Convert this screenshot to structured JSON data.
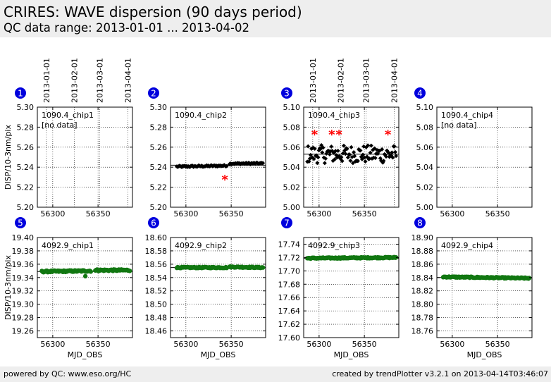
{
  "header": {
    "title": "CRIRES: WAVE dispersion (90 days period)",
    "subtitle": "QC data range: 2013-01-01 ... 2013-04-02"
  },
  "footer": {
    "left": "powered by QC: www.eso.org/HC",
    "right": "created by trendPlotter v3.2.1 on 2013-04-14T03:46:07"
  },
  "colors": {
    "row1_points": "#000000",
    "row2_points": "#117711",
    "outlier": "#ff0000",
    "badge": "#0000dd",
    "header_bg": "#eeeeee"
  },
  "chart_data": [
    {
      "type": "scatter",
      "number": "1",
      "label": "1090.4_chip1",
      "note": "[no data]",
      "ylabel": "DISP/10-3nm/pix",
      "xlabel": "",
      "xlim": [
        56283,
        56388
      ],
      "xticks": [
        56300,
        56350
      ],
      "ylim": [
        5.2,
        5.3
      ],
      "yticks": [
        "5.20",
        "5.22",
        "5.24",
        "5.26",
        "5.28",
        "5.30"
      ],
      "reference": null,
      "noise": 0,
      "series": [],
      "outliers": [],
      "date_ticks": [
        {
          "label": "2013-01-01",
          "x": 56293
        },
        {
          "label": "2013-02-01",
          "x": 56324
        },
        {
          "label": "2013-03-01",
          "x": 56352
        },
        {
          "label": "2013-04-01",
          "x": 56383
        }
      ]
    },
    {
      "type": "scatter",
      "number": "2",
      "label": "1090.4_chip2",
      "note": "",
      "ylabel": "",
      "xlabel": "",
      "xlim": [
        56283,
        56388
      ],
      "xticks": [
        56300,
        56350
      ],
      "ylim": [
        5.2,
        5.3
      ],
      "yticks": [
        "5.20",
        "5.22",
        "5.24",
        "5.26",
        "5.28",
        "5.30"
      ],
      "reference": 5.242,
      "noise": 0.0008,
      "series": [
        {
          "x": [
            56290,
            56345
          ],
          "y": [
            5.2405,
            5.2415
          ]
        },
        {
          "x": [
            56348,
            56385
          ],
          "y": [
            5.2435,
            5.2438
          ]
        }
      ],
      "outliers": [
        {
          "x": 56343,
          "y": 5.229
        }
      ],
      "date_ticks": []
    },
    {
      "type": "scatter",
      "number": "3",
      "label": "1090.4_chip3",
      "note": "",
      "ylabel": "",
      "xlabel": "",
      "xlim": [
        56283,
        56388
      ],
      "xticks": [
        56300,
        56350
      ],
      "ylim": [
        5.0,
        5.1
      ],
      "yticks": [
        "5.00",
        "5.02",
        "5.04",
        "5.06",
        "5.08",
        "5.10"
      ],
      "reference": 5.053,
      "noise": 0.009,
      "series": [
        {
          "x": [
            56287,
            56385
          ],
          "y": [
            5.053,
            5.053
          ]
        }
      ],
      "outliers": [
        {
          "x": 56295,
          "y": 5.074
        },
        {
          "x": 56314,
          "y": 5.074
        },
        {
          "x": 56322,
          "y": 5.074
        },
        {
          "x": 56376,
          "y": 5.074
        }
      ],
      "date_ticks": [
        {
          "label": "2013-01-01",
          "x": 56293
        },
        {
          "label": "2013-02-01",
          "x": 56324
        },
        {
          "label": "2013-03-01",
          "x": 56352
        },
        {
          "label": "2013-04-01",
          "x": 56383
        }
      ]
    },
    {
      "type": "scatter",
      "number": "4",
      "label": "1090.4_chip4",
      "note": "[no data]",
      "ylabel": "",
      "xlabel": "",
      "xlim": [
        56283,
        56388
      ],
      "xticks": [
        56300,
        56350
      ],
      "ylim": [
        5.0,
        5.1
      ],
      "yticks": [
        "5.00",
        "5.02",
        "5.04",
        "5.06",
        "5.08",
        "5.10"
      ],
      "reference": null,
      "noise": 0,
      "series": [],
      "outliers": [],
      "date_ticks": []
    },
    {
      "type": "scatter",
      "number": "5",
      "label": "4092.9_chip1",
      "note": "",
      "ylabel": "DISP/10-3nm/pix",
      "xlabel": "MJD_OBS",
      "xlim": [
        56283,
        56388
      ],
      "xticks": [
        56300,
        56350
      ],
      "ylim": [
        19.25,
        19.4
      ],
      "yticks": [
        "19.26",
        "19.28",
        "19.30",
        "19.32",
        "19.34",
        "19.36",
        "19.38",
        "19.40"
      ],
      "reference": 19.349,
      "noise": 0.0012,
      "series": [
        {
          "x": [
            56288,
            56342
          ],
          "y": [
            19.349,
            19.35
          ]
        },
        {
          "x": [
            56347,
            56385
          ],
          "y": [
            19.351,
            19.351
          ]
        }
      ],
      "outliers": [],
      "extra": [
        {
          "x": 56336,
          "y": 19.342
        }
      ],
      "date_ticks": []
    },
    {
      "type": "scatter",
      "number": "6",
      "label": "4092.9_chip2",
      "note": "",
      "ylabel": "",
      "xlabel": "MJD_OBS",
      "xlim": [
        56283,
        56388
      ],
      "xticks": [
        56300,
        56350
      ],
      "ylim": [
        18.45,
        18.6
      ],
      "yticks": [
        "18.46",
        "18.48",
        "18.50",
        "18.52",
        "18.54",
        "18.56",
        "18.58",
        "18.60"
      ],
      "reference": 18.555,
      "noise": 0.0008,
      "series": [
        {
          "x": [
            56290,
            56345
          ],
          "y": [
            18.555,
            18.555
          ]
        },
        {
          "x": [
            56348,
            56385
          ],
          "y": [
            18.556,
            18.555
          ]
        }
      ],
      "outliers": [],
      "date_ticks": []
    },
    {
      "type": "scatter",
      "number": "7",
      "label": "4092.9_chip3",
      "note": "",
      "ylabel": "",
      "xlabel": "MJD_OBS",
      "xlim": [
        56283,
        56388
      ],
      "xticks": [
        56300,
        56350
      ],
      "ylim": [
        17.6,
        17.75
      ],
      "yticks": [
        "17.60",
        "17.62",
        "17.64",
        "17.66",
        "17.68",
        "17.70",
        "17.72",
        "17.74"
      ],
      "reference": 17.719,
      "noise": 0.0008,
      "series": [
        {
          "x": [
            56287,
            56385
          ],
          "y": [
            17.719,
            17.72
          ]
        }
      ],
      "outliers": [],
      "date_ticks": []
    },
    {
      "type": "scatter",
      "number": "8",
      "label": "4092.9_chip4",
      "note": "",
      "ylabel": "",
      "xlabel": "MJD_OBS",
      "xlim": [
        56283,
        56388
      ],
      "xticks": [
        56300,
        56350
      ],
      "ylim": [
        18.75,
        18.9
      ],
      "yticks": [
        "18.76",
        "18.78",
        "18.80",
        "18.82",
        "18.84",
        "18.86",
        "18.88",
        "18.90"
      ],
      "reference": 18.84,
      "noise": 0.0008,
      "series": [
        {
          "x": [
            56290,
            56385
          ],
          "y": [
            18.841,
            18.839
          ]
        }
      ],
      "outliers": [],
      "date_ticks": []
    }
  ]
}
